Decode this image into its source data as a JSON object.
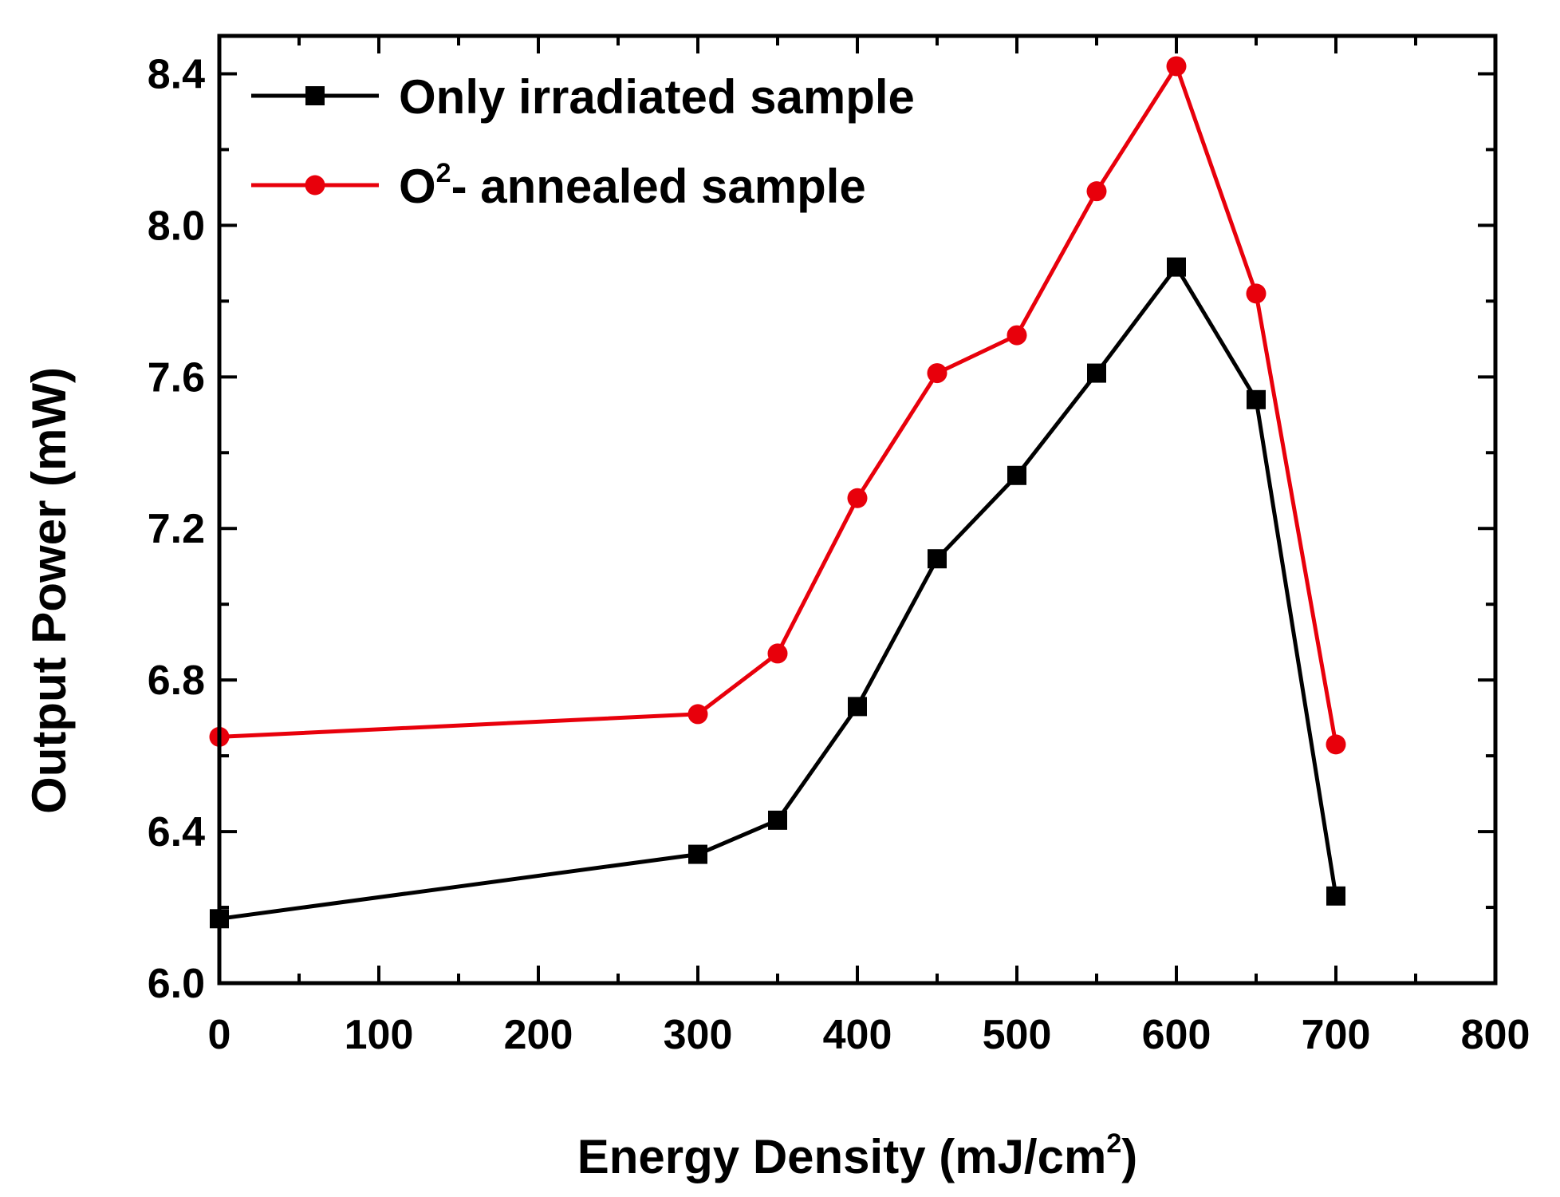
{
  "chart_data": {
    "type": "line",
    "title": "",
    "xlabel": {
      "main": "Energy Density (mJ/cm",
      "sup": "2",
      "tail": ")"
    },
    "ylabel": "Output Power (mW)",
    "xlim": [
      0,
      800
    ],
    "ylim": [
      6.0,
      8.5
    ],
    "xticks": [
      "0",
      "100",
      "200",
      "300",
      "400",
      "500",
      "600",
      "700",
      "800"
    ],
    "yticks": [
      "6.0",
      "6.4",
      "6.8",
      "7.2",
      "7.6",
      "8.0",
      "8.4"
    ],
    "grid": false,
    "legend_position": "top-left",
    "series": [
      {
        "name": "Only irradiated sample",
        "color": "#000000",
        "marker": "square",
        "x": [
          0,
          300,
          350,
          400,
          450,
          500,
          550,
          600,
          650,
          700
        ],
        "y": [
          6.17,
          6.34,
          6.43,
          6.73,
          7.12,
          7.34,
          7.61,
          7.89,
          7.54,
          6.23
        ]
      },
      {
        "name": "O2- annealed sample",
        "legend": {
          "main": "O",
          "sup": "2",
          "tail": "- annealed sample"
        },
        "color": "#e8000b",
        "marker": "circle",
        "x": [
          0,
          300,
          350,
          400,
          450,
          500,
          550,
          600,
          650,
          700
        ],
        "y": [
          6.65,
          6.71,
          6.87,
          7.28,
          7.61,
          7.71,
          8.09,
          8.42,
          7.82,
          6.63
        ]
      }
    ]
  }
}
